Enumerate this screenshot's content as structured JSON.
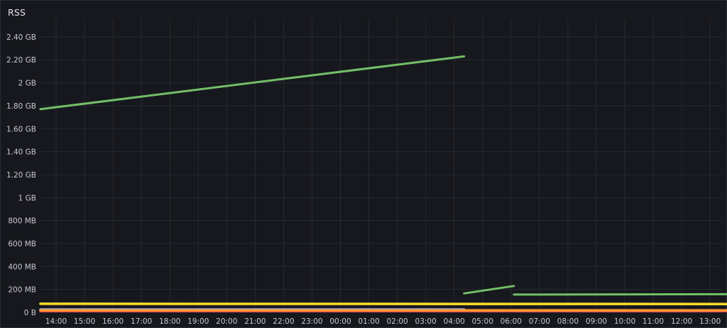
{
  "panel": {
    "title": "RSS"
  },
  "chart_data": {
    "type": "line",
    "title": "RSS",
    "xlabel": "",
    "ylabel": "",
    "y_unit": "MB",
    "ylim": [
      0,
      2560
    ],
    "y_ticks": [
      {
        "value": 0,
        "label": "0 B"
      },
      {
        "value": 200,
        "label": "200 MB"
      },
      {
        "value": 400,
        "label": "400 MB"
      },
      {
        "value": 600,
        "label": "600 MB"
      },
      {
        "value": 800,
        "label": "800 MB"
      },
      {
        "value": 1000,
        "label": "1 GB"
      },
      {
        "value": 1200,
        "label": "1.20 GB"
      },
      {
        "value": 1400,
        "label": "1.40 GB"
      },
      {
        "value": 1600,
        "label": "1.60 GB"
      },
      {
        "value": 1800,
        "label": "1.80 GB"
      },
      {
        "value": 2000,
        "label": "2 GB"
      },
      {
        "value": 2200,
        "label": "2.20 GB"
      },
      {
        "value": 2400,
        "label": "2.40 GB"
      }
    ],
    "x_ticks": [
      "14:00",
      "15:00",
      "16:00",
      "17:00",
      "18:00",
      "19:00",
      "20:00",
      "21:00",
      "22:00",
      "23:00",
      "00:00",
      "01:00",
      "02:00",
      "03:00",
      "04:00",
      "05:00",
      "06:00",
      "07:00",
      "08:00",
      "09:00",
      "10:00",
      "11:00",
      "12:00",
      "13:00"
    ],
    "x_unit": "hours from 14:00",
    "xlim": [
      -0.55,
      23.8
    ],
    "grid": true,
    "legend": "none",
    "series": [
      {
        "color": "#73bf69",
        "segments": [
          [
            [
              -0.55,
              1770
            ],
            [
              14.35,
              2230
            ]
          ],
          [
            [
              14.35,
              165
            ],
            [
              16.1,
              230
            ]
          ],
          [
            [
              16.1,
              155
            ],
            [
              23.8,
              158
            ]
          ]
        ]
      },
      {
        "color": "#fade2a",
        "segments": [
          [
            [
              -0.55,
              75
            ],
            [
              23.8,
              73
            ]
          ]
        ]
      },
      {
        "color": "#8ab8ff",
        "segments": [
          [
            [
              -0.55,
              25
            ],
            [
              14.35,
              25
            ]
          ]
        ]
      },
      {
        "color": "#f2495c",
        "segments": [
          [
            [
              -0.55,
              12
            ],
            [
              23.8,
              12
            ]
          ]
        ]
      },
      {
        "color": "#ff9830",
        "segments": [
          [
            [
              -0.55,
              18
            ],
            [
              23.8,
              18
            ]
          ]
        ]
      }
    ]
  }
}
